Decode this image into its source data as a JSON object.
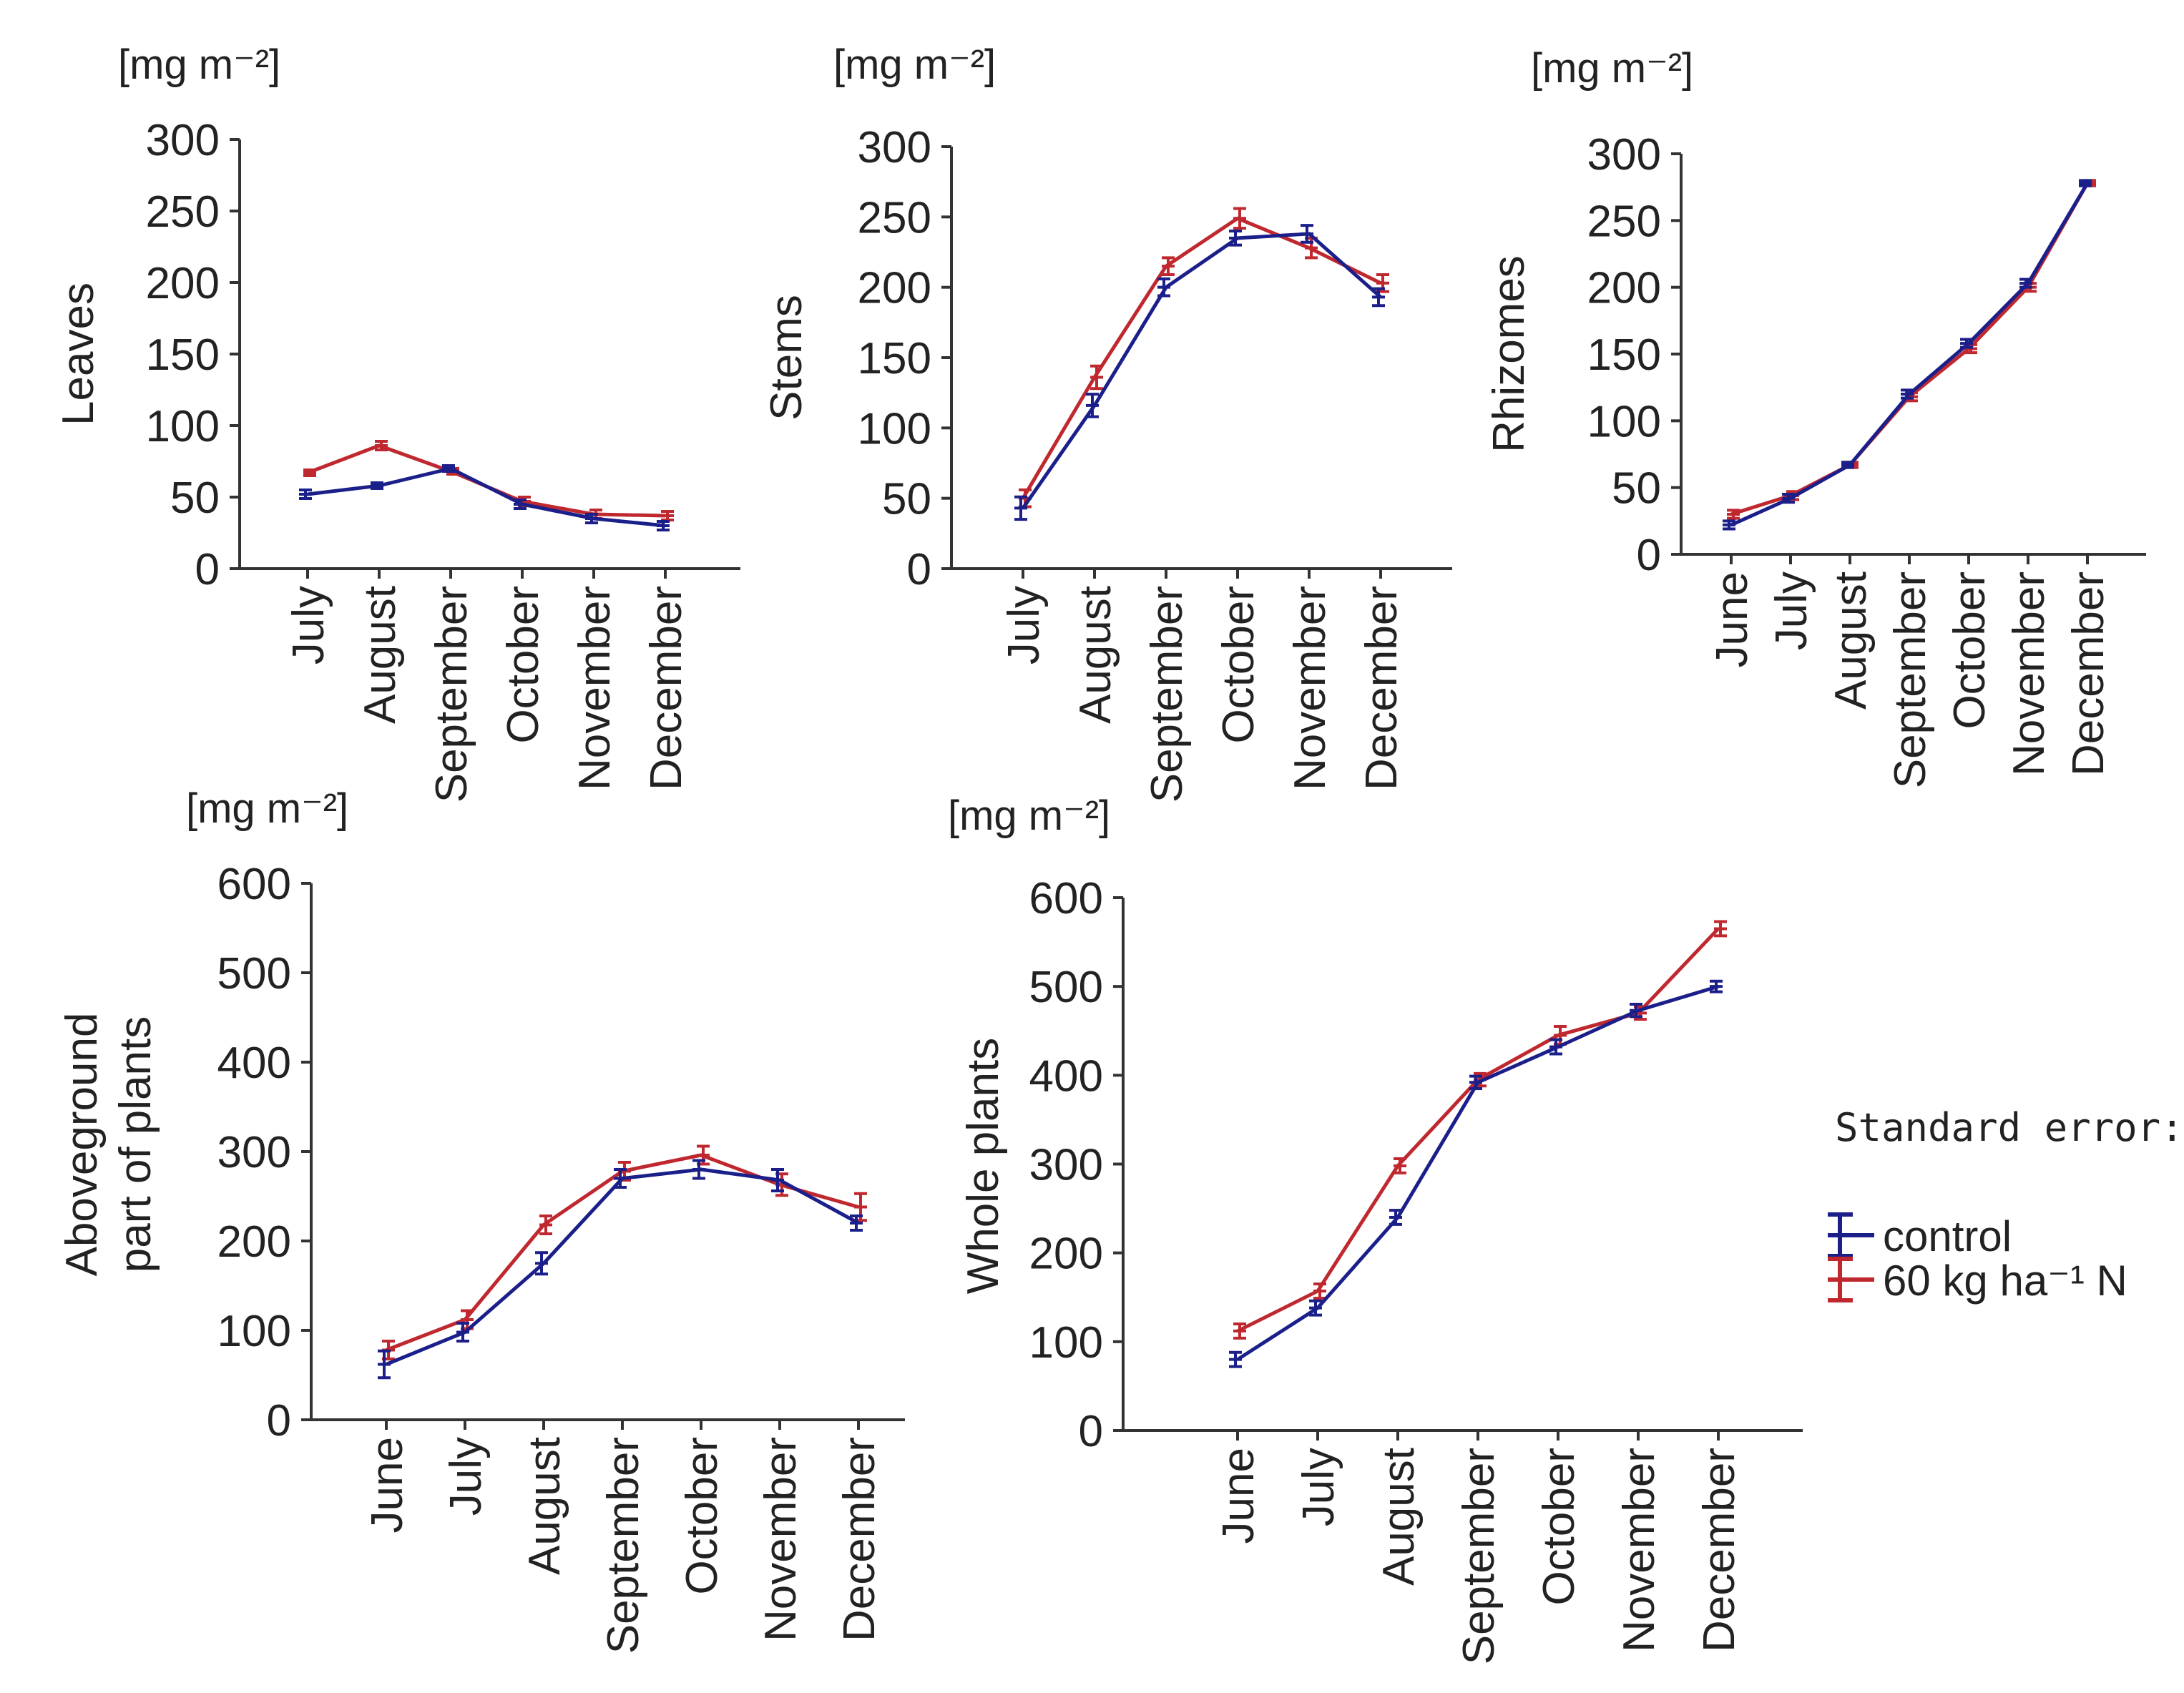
{
  "figure": {
    "legend": {
      "title": "Standard error:",
      "entries": [
        {
          "label": "control",
          "color": "#1b1f8a"
        },
        {
          "label": "60 kg ha⁻¹ N",
          "color": "#c0282f"
        }
      ]
    }
  },
  "chart_data": [
    {
      "id": "leaves",
      "type": "line",
      "title": "",
      "unit_label": "[mg m⁻²]",
      "ylabel": "Leaves",
      "xlabel": "",
      "ylim": [
        0,
        300
      ],
      "yticks": [
        0,
        50,
        100,
        150,
        200,
        250,
        300
      ],
      "categories": [
        "July",
        "August",
        "September",
        "October",
        "November",
        "December"
      ],
      "series": [
        {
          "name": "control",
          "color": "#1b1f8a",
          "values": [
            52,
            58,
            70,
            45,
            35,
            30
          ],
          "errors": [
            3,
            2,
            2,
            3,
            3,
            3
          ]
        },
        {
          "name": "60 kg ha⁻¹ N",
          "color": "#c0282f",
          "values": [
            67,
            86,
            68,
            47,
            38,
            37
          ],
          "errors": [
            2,
            3,
            2,
            3,
            3,
            3
          ]
        }
      ]
    },
    {
      "id": "stems",
      "type": "line",
      "title": "",
      "unit_label": "[mg m⁻²]",
      "ylabel": "Stems",
      "xlabel": "",
      "ylim": [
        0,
        300
      ],
      "yticks": [
        0,
        50,
        100,
        150,
        200,
        250,
        300
      ],
      "categories": [
        "July",
        "August",
        "September",
        "October",
        "November",
        "December"
      ],
      "series": [
        {
          "name": "control",
          "color": "#1b1f8a",
          "values": [
            43,
            116,
            200,
            235,
            238,
            193
          ],
          "errors": [
            8,
            8,
            6,
            5,
            6,
            6
          ]
        },
        {
          "name": "60 kg ha⁻¹ N",
          "color": "#c0282f",
          "values": [
            50,
            136,
            215,
            249,
            228,
            203
          ],
          "errors": [
            6,
            8,
            6,
            7,
            7,
            6
          ]
        }
      ]
    },
    {
      "id": "rhizomes",
      "type": "line",
      "title": "",
      "unit_label": "[mg m⁻²]",
      "ylabel": "Rhizomes",
      "xlabel": "",
      "ylim": [
        0,
        300
      ],
      "yticks": [
        0,
        50,
        100,
        150,
        200,
        250,
        300
      ],
      "categories": [
        "June",
        "July",
        "August",
        "September",
        "October",
        "November",
        "December"
      ],
      "series": [
        {
          "name": "control",
          "color": "#1b1f8a",
          "values": [
            22,
            42,
            67,
            120,
            158,
            203,
            278
          ],
          "errors": [
            3,
            3,
            2,
            3,
            3,
            3,
            2
          ]
        },
        {
          "name": "60 kg ha⁻¹ N",
          "color": "#c0282f",
          "values": [
            30,
            44,
            67,
            118,
            154,
            200,
            278
          ],
          "errors": [
            3,
            3,
            2,
            3,
            3,
            3,
            2
          ]
        }
      ]
    },
    {
      "id": "aboveground",
      "type": "line",
      "title": "",
      "unit_label": "[mg m⁻²]",
      "ylabel": [
        "Aboveground",
        "part of plants"
      ],
      "xlabel": "",
      "ylim": [
        0,
        600
      ],
      "yticks": [
        0,
        100,
        200,
        300,
        400,
        500,
        600
      ],
      "categories": [
        "June",
        "July",
        "August",
        "September",
        "October",
        "November",
        "December"
      ],
      "series": [
        {
          "name": "control",
          "color": "#1b1f8a",
          "values": [
            62,
            98,
            175,
            270,
            280,
            268,
            220
          ],
          "errors": [
            15,
            10,
            12,
            10,
            10,
            12,
            8
          ]
        },
        {
          "name": "60 kg ha⁻¹ N",
          "color": "#c0282f",
          "values": [
            78,
            112,
            218,
            278,
            296,
            263,
            238
          ],
          "errors": [
            10,
            10,
            10,
            10,
            10,
            12,
            15
          ]
        }
      ]
    },
    {
      "id": "whole",
      "type": "line",
      "title": "",
      "unit_label": "[mg m⁻²]",
      "ylabel": "Whole plants",
      "xlabel": "",
      "ylim": [
        0,
        600
      ],
      "yticks": [
        0,
        100,
        200,
        300,
        400,
        500,
        600
      ],
      "categories": [
        "June",
        "July",
        "August",
        "September",
        "October",
        "November",
        "December"
      ],
      "series": [
        {
          "name": "control",
          "color": "#1b1f8a",
          "values": [
            80,
            138,
            240,
            392,
            432,
            473,
            500
          ],
          "errors": [
            8,
            8,
            8,
            7,
            8,
            7,
            6
          ]
        },
        {
          "name": "60 kg ha⁻¹ N",
          "color": "#c0282f",
          "values": [
            112,
            157,
            298,
            395,
            445,
            470,
            565
          ],
          "errors": [
            8,
            8,
            8,
            7,
            10,
            7,
            8
          ]
        }
      ]
    }
  ]
}
